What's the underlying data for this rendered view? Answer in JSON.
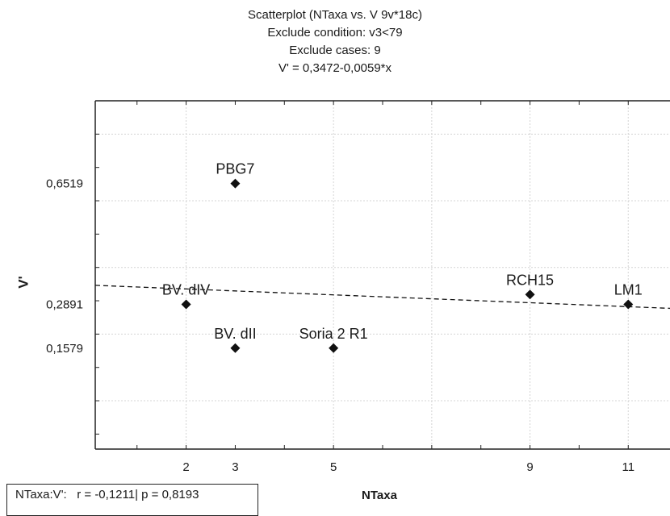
{
  "chart_data": {
    "type": "scatter",
    "title_lines": [
      "Scatterplot (NTaxa vs. V 9v*18c)",
      "Exclude condition: v3<79",
      "Exclude cases: 9",
      "V' = 0,3472-0,0059*x"
    ],
    "xlabel": "NTaxa",
    "ylabel": "V'",
    "x_ticks": [
      2,
      3,
      5,
      9,
      11
    ],
    "x_tick_labels": [
      "2",
      "3",
      "5",
      "9",
      "11"
    ],
    "y_ticks": [
      0.1579,
      0.2891,
      0.6519
    ],
    "y_tick_labels": [
      "0,1579",
      "0,2891",
      "0,6519"
    ],
    "xlim": [
      0.15,
      11.85
    ],
    "ylim": [
      -0.145,
      0.9
    ],
    "grid": true,
    "points": [
      {
        "label": "PBG7",
        "x": 3,
        "y": 0.6519
      },
      {
        "label": "BV. dIV",
        "x": 2,
        "y": 0.2891
      },
      {
        "label": "BV. dII",
        "x": 3,
        "y": 0.1579
      },
      {
        "label": "Soria 2 R1",
        "x": 5,
        "y": 0.1579
      },
      {
        "label": "RCH15",
        "x": 9,
        "y": 0.3187
      },
      {
        "label": "LM1",
        "x": 11,
        "y": 0.2891
      }
    ],
    "regression": {
      "intercept": 0.3472,
      "slope": -0.0059
    },
    "stats_text": "NTaxa:V':   r = -0,1211| p = 0,8193"
  }
}
